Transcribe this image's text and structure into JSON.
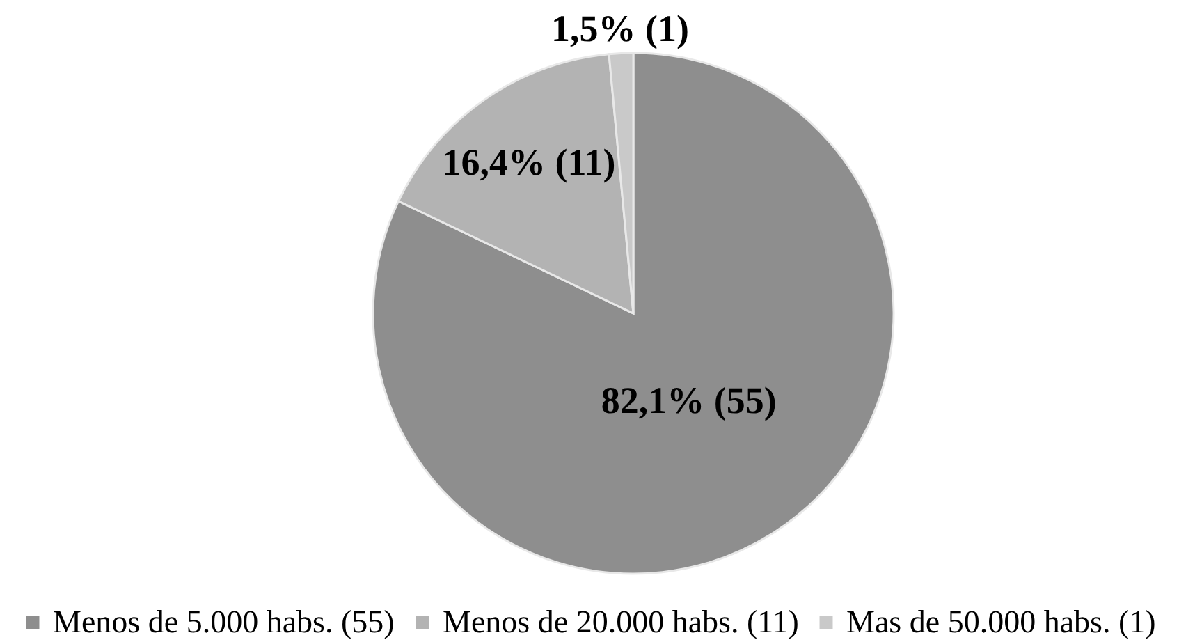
{
  "chart_data": {
    "type": "pie",
    "categories": [
      "Menos de 5.000 habs. (55)",
      "Menos de 20.000 habs. (11)",
      "Mas de 50.000 habs. (1)"
    ],
    "values": [
      55,
      11,
      1
    ],
    "colors": [
      "#8e8e8e",
      "#b3b3b3",
      "#c9c9c9"
    ],
    "value_labels": [
      "82,1% (55)",
      "16,4% (11)",
      "1,5% (1)"
    ],
    "legend": "bottom"
  }
}
